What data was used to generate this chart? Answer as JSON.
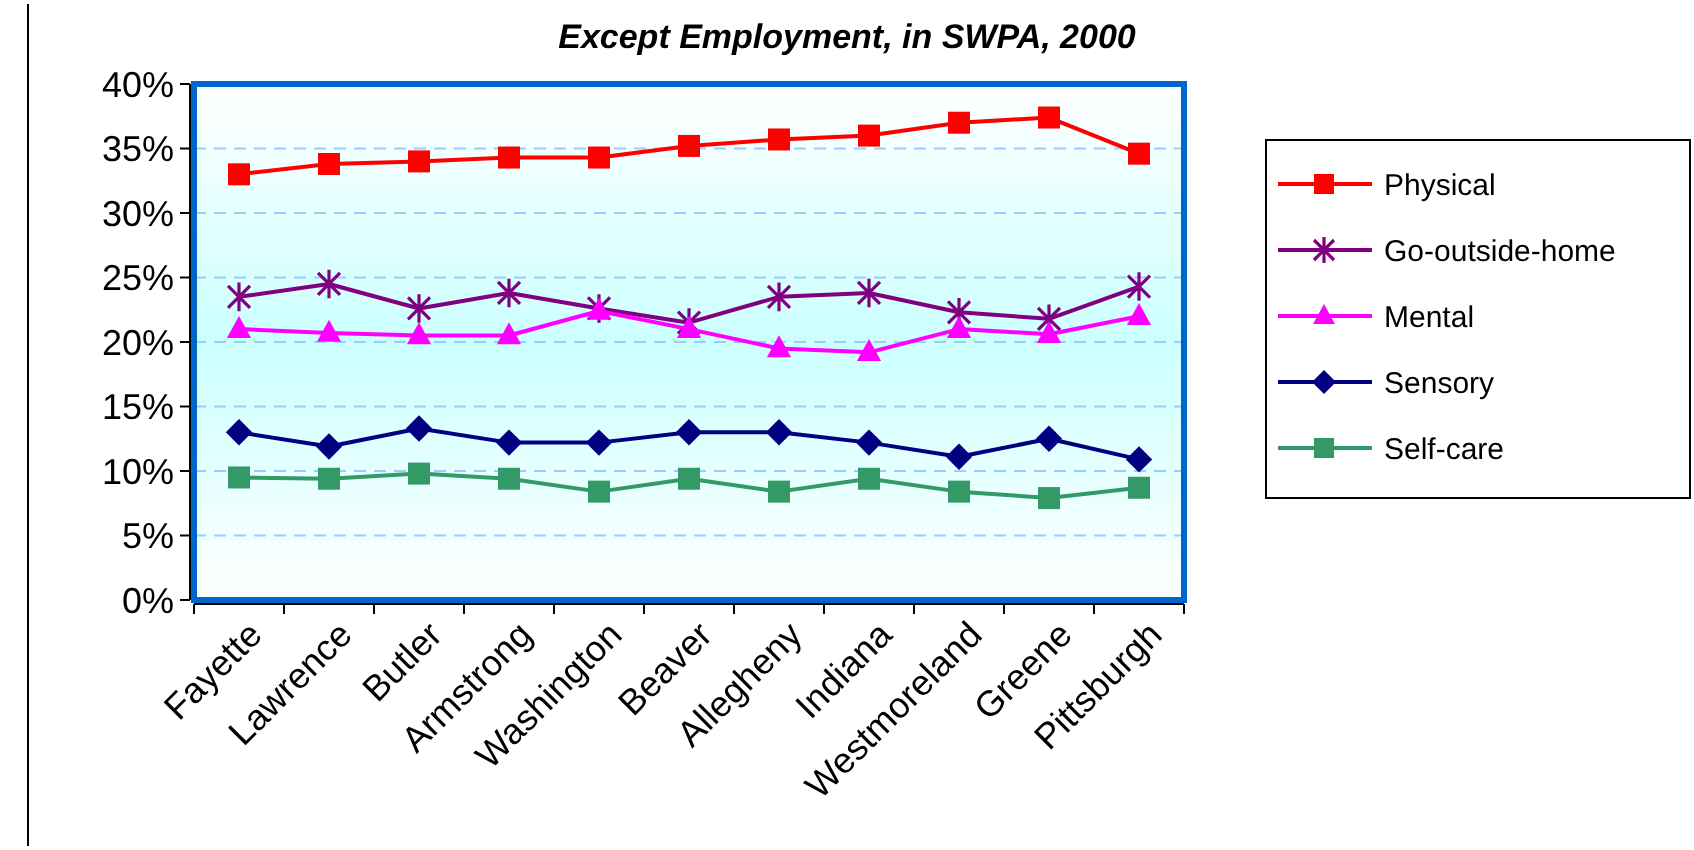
{
  "chart_data": {
    "type": "line",
    "title": "Except Employment, in SWPA, 2000",
    "categories": [
      "Fayette",
      "Lawrence",
      "Butler",
      "Armstrong",
      "Washington",
      "Beaver",
      "Allegheny",
      "Indiana",
      "Westmoreland",
      "Greene",
      "Pittsburgh"
    ],
    "series": [
      {
        "name": "Physical",
        "color": "#ff0000",
        "marker": "square",
        "values": [
          33.0,
          33.8,
          34.0,
          34.3,
          34.3,
          35.2,
          35.7,
          36.0,
          37.0,
          37.4,
          34.6
        ]
      },
      {
        "name": "Go-outside-home",
        "color": "#800080",
        "marker": "cross",
        "values": [
          23.5,
          24.5,
          22.6,
          23.8,
          22.6,
          21.5,
          23.5,
          23.8,
          22.3,
          21.8,
          24.3
        ]
      },
      {
        "name": "Mental",
        "color": "#ff00ff",
        "marker": "triangle",
        "values": [
          21.0,
          20.7,
          20.5,
          20.5,
          22.4,
          21.0,
          19.5,
          19.2,
          21.0,
          20.6,
          22.0
        ]
      },
      {
        "name": "Sensory",
        "color": "#000080",
        "marker": "diamond",
        "values": [
          13.0,
          11.9,
          13.3,
          12.2,
          12.2,
          13.0,
          13.0,
          12.2,
          11.1,
          12.5,
          10.9
        ]
      },
      {
        "name": "Self-care",
        "color": "#339966",
        "marker": "square",
        "values": [
          9.5,
          9.4,
          9.8,
          9.4,
          8.4,
          9.4,
          8.4,
          9.4,
          8.4,
          7.9,
          8.7
        ]
      }
    ],
    "ylim": [
      0,
      40
    ],
    "yticks": [
      {
        "value": 0,
        "label": "0%"
      },
      {
        "value": 5,
        "label": "5%"
      },
      {
        "value": 10,
        "label": "10%"
      },
      {
        "value": 15,
        "label": "15%"
      },
      {
        "value": 20,
        "label": "20%"
      },
      {
        "value": 25,
        "label": "25%"
      },
      {
        "value": 30,
        "label": "30%"
      },
      {
        "value": 35,
        "label": "35%"
      },
      {
        "value": 40,
        "label": "40%"
      }
    ],
    "grid": "y",
    "legend": "right",
    "line_style": "solid"
  }
}
